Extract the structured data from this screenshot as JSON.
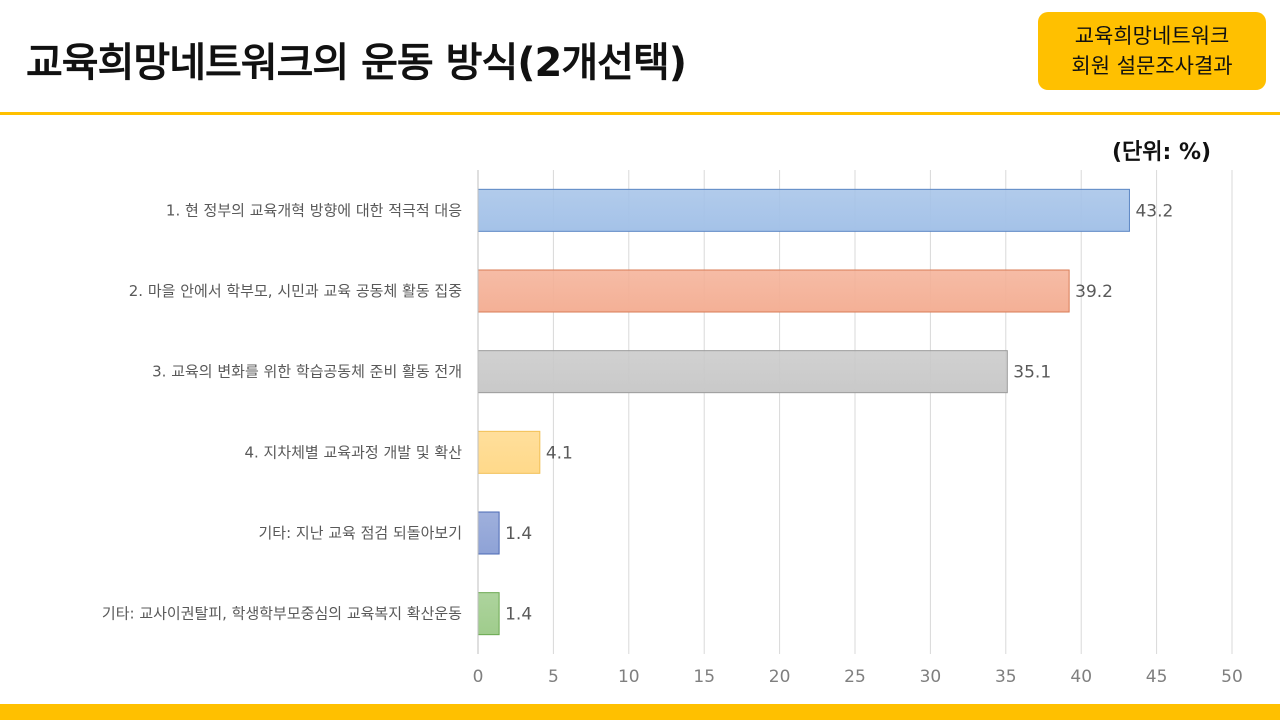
{
  "header": {
    "title": "교육희망네트워크의 운동 방식(2개선택)",
    "badge_line1": "교육희망네트워크",
    "badge_line2": "회원 설문조사결과",
    "unit": "(단위:  %)"
  },
  "colors": {
    "accent": "#ffc000",
    "bar_fills": [
      "#a4c2e8",
      "#f4b096",
      "#c9c9c9",
      "#ffd98a",
      "#8ea2d6",
      "#9fcc8c"
    ],
    "bar_strokes": [
      "#5b86c4",
      "#d97b55",
      "#9a9a9a",
      "#f2c055",
      "#4a68b4",
      "#6aa84f"
    ],
    "grid": "#d9d9d9"
  },
  "chart_data": {
    "type": "bar",
    "orientation": "horizontal",
    "categories": [
      "1. 현 정부의 교육개혁 방향에 대한 적극적 대응",
      "2. 마을 안에서 학부모, 시민과 교육 공동체 활동 집중",
      "3. 교육의 변화를 위한 학습공동체 준비 활동 전개",
      "4. 지차체별 교육과정 개발 및 확산",
      "기타: 지난 교육 점검 되돌아보기",
      "기타: 교사이권탈피, 학생학부모중심의 교육복지 확산운동"
    ],
    "values": [
      43.2,
      39.2,
      35.1,
      4.1,
      1.4,
      1.4
    ],
    "value_labels": [
      "43.2",
      "39.2",
      "35.1",
      "4.1",
      "1.4",
      "1.4"
    ],
    "xlim": [
      0,
      50
    ],
    "xticks": [
      "0",
      "5",
      "10",
      "15",
      "20",
      "25",
      "30",
      "35",
      "40",
      "45",
      "50"
    ],
    "grid": true,
    "legend": "none"
  }
}
